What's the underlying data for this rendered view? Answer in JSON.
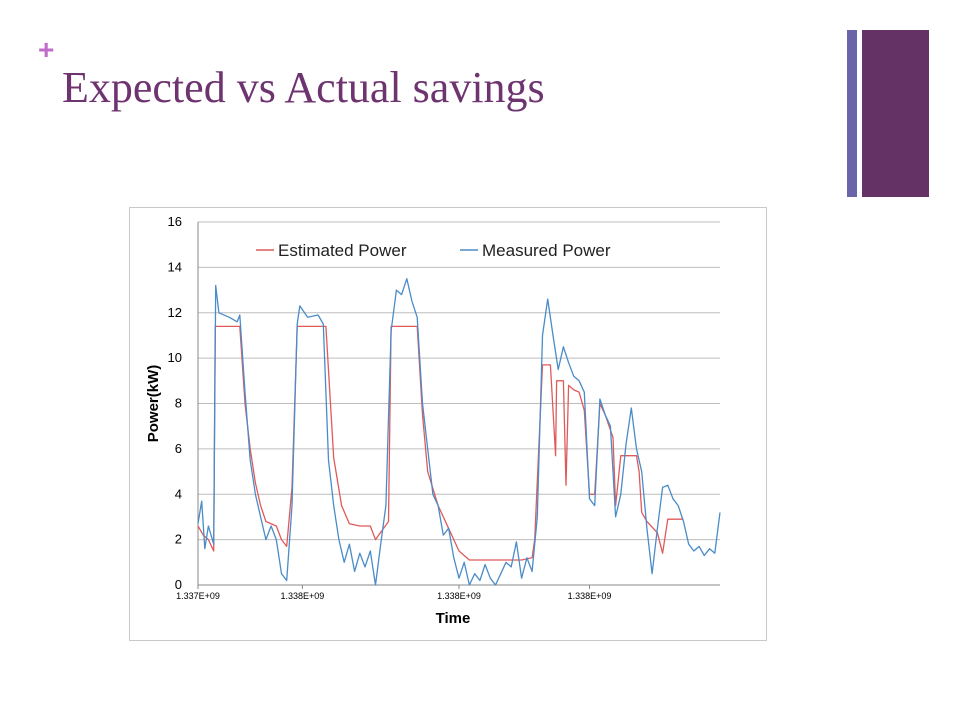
{
  "slide": {
    "plus": "+",
    "title": "Expected vs Actual savings",
    "colors": {
      "accent": "#c06cc8",
      "title": "#6e3470",
      "bar_thin": "#6a64a8",
      "bar_thick": "#643264"
    }
  },
  "chart_data": {
    "type": "line",
    "title": "",
    "xlabel": "Time",
    "ylabel": "Power(kW)",
    "ylim": [
      0,
      16
    ],
    "yticks": [
      "0",
      "2",
      "4",
      "6",
      "8",
      "10",
      "12",
      "14",
      "16"
    ],
    "xticks": [
      "1.337E+09",
      "1.338E+09",
      "1.338E+09",
      "1.338E+09"
    ],
    "x_tick_positions": [
      0,
      0.2,
      0.5,
      0.75
    ],
    "grid": true,
    "legend_position": "top",
    "series": [
      {
        "name": "Estimated Power",
        "color": "#e05a5a",
        "points": [
          [
            0,
            2.6
          ],
          [
            0.01,
            2.2
          ],
          [
            0.02,
            2.0
          ],
          [
            0.03,
            1.5
          ],
          [
            0.033,
            11.4
          ],
          [
            0.08,
            11.4
          ],
          [
            0.09,
            8.0
          ],
          [
            0.1,
            6.0
          ],
          [
            0.11,
            4.5
          ],
          [
            0.12,
            3.5
          ],
          [
            0.13,
            2.8
          ],
          [
            0.15,
            2.6
          ],
          [
            0.16,
            2.0
          ],
          [
            0.17,
            1.7
          ],
          [
            0.18,
            4.3
          ],
          [
            0.19,
            11.4
          ],
          [
            0.245,
            11.4
          ],
          [
            0.26,
            5.6
          ],
          [
            0.275,
            3.5
          ],
          [
            0.29,
            2.7
          ],
          [
            0.31,
            2.6
          ],
          [
            0.33,
            2.6
          ],
          [
            0.34,
            2.0
          ],
          [
            0.365,
            2.8
          ],
          [
            0.37,
            11.4
          ],
          [
            0.42,
            11.4
          ],
          [
            0.43,
            7.5
          ],
          [
            0.44,
            5.0
          ],
          [
            0.46,
            3.5
          ],
          [
            0.48,
            2.5
          ],
          [
            0.49,
            2.0
          ],
          [
            0.5,
            1.5
          ],
          [
            0.52,
            1.1
          ],
          [
            0.56,
            1.1
          ],
          [
            0.62,
            1.1
          ],
          [
            0.64,
            1.2
          ],
          [
            0.645,
            2.0
          ],
          [
            0.66,
            9.7
          ],
          [
            0.675,
            9.7
          ],
          [
            0.685,
            5.7
          ],
          [
            0.687,
            9.0
          ],
          [
            0.7,
            9.0
          ],
          [
            0.705,
            4.4
          ],
          [
            0.71,
            8.8
          ],
          [
            0.72,
            8.6
          ],
          [
            0.73,
            8.5
          ],
          [
            0.74,
            7.7
          ],
          [
            0.75,
            4.0
          ],
          [
            0.76,
            4.0
          ],
          [
            0.77,
            8.0
          ],
          [
            0.78,
            7.5
          ],
          [
            0.795,
            6.5
          ],
          [
            0.8,
            3.5
          ],
          [
            0.81,
            5.7
          ],
          [
            0.84,
            5.7
          ],
          [
            0.845,
            5.0
          ],
          [
            0.85,
            3.2
          ],
          [
            0.86,
            2.8
          ],
          [
            0.88,
            2.3
          ],
          [
            0.89,
            1.4
          ],
          [
            0.9,
            2.9
          ],
          [
            0.93,
            2.9
          ]
        ]
      },
      {
        "name": "Measured Power",
        "color": "#4a8cc8",
        "points": [
          [
            0,
            2.7
          ],
          [
            0.007,
            3.7
          ],
          [
            0.013,
            1.6
          ],
          [
            0.02,
            2.6
          ],
          [
            0.03,
            1.8
          ],
          [
            0.034,
            13.2
          ],
          [
            0.04,
            12.0
          ],
          [
            0.06,
            11.8
          ],
          [
            0.075,
            11.6
          ],
          [
            0.08,
            11.9
          ],
          [
            0.09,
            8.5
          ],
          [
            0.1,
            5.5
          ],
          [
            0.11,
            4.0
          ],
          [
            0.12,
            3.0
          ],
          [
            0.13,
            2.0
          ],
          [
            0.14,
            2.6
          ],
          [
            0.15,
            2.0
          ],
          [
            0.16,
            0.5
          ],
          [
            0.17,
            0.2
          ],
          [
            0.18,
            3.5
          ],
          [
            0.19,
            11.5
          ],
          [
            0.195,
            12.3
          ],
          [
            0.21,
            11.8
          ],
          [
            0.23,
            11.9
          ],
          [
            0.24,
            11.5
          ],
          [
            0.25,
            5.5
          ],
          [
            0.26,
            3.5
          ],
          [
            0.27,
            2.0
          ],
          [
            0.28,
            1.0
          ],
          [
            0.29,
            1.8
          ],
          [
            0.3,
            0.6
          ],
          [
            0.31,
            1.4
          ],
          [
            0.32,
            0.8
          ],
          [
            0.33,
            1.5
          ],
          [
            0.34,
            0.0
          ],
          [
            0.35,
            1.8
          ],
          [
            0.36,
            3.5
          ],
          [
            0.37,
            11.2
          ],
          [
            0.38,
            13.0
          ],
          [
            0.39,
            12.8
          ],
          [
            0.4,
            13.5
          ],
          [
            0.41,
            12.5
          ],
          [
            0.42,
            11.8
          ],
          [
            0.43,
            8.0
          ],
          [
            0.44,
            6.0
          ],
          [
            0.45,
            4.0
          ],
          [
            0.46,
            3.5
          ],
          [
            0.47,
            2.2
          ],
          [
            0.48,
            2.5
          ],
          [
            0.49,
            1.2
          ],
          [
            0.5,
            0.3
          ],
          [
            0.51,
            1.0
          ],
          [
            0.52,
            0.0
          ],
          [
            0.53,
            0.5
          ],
          [
            0.54,
            0.2
          ],
          [
            0.55,
            0.9
          ],
          [
            0.56,
            0.3
          ],
          [
            0.57,
            0.0
          ],
          [
            0.58,
            0.5
          ],
          [
            0.59,
            1.0
          ],
          [
            0.6,
            0.8
          ],
          [
            0.61,
            1.9
          ],
          [
            0.62,
            0.3
          ],
          [
            0.63,
            1.2
          ],
          [
            0.64,
            0.6
          ],
          [
            0.65,
            3.0
          ],
          [
            0.66,
            11.0
          ],
          [
            0.67,
            12.6
          ],
          [
            0.68,
            11.0
          ],
          [
            0.69,
            9.5
          ],
          [
            0.7,
            10.5
          ],
          [
            0.71,
            9.8
          ],
          [
            0.72,
            9.2
          ],
          [
            0.73,
            9.0
          ],
          [
            0.74,
            8.5
          ],
          [
            0.75,
            3.8
          ],
          [
            0.76,
            3.5
          ],
          [
            0.77,
            8.2
          ],
          [
            0.78,
            7.5
          ],
          [
            0.79,
            7.0
          ],
          [
            0.8,
            3.0
          ],
          [
            0.81,
            4.0
          ],
          [
            0.82,
            6.2
          ],
          [
            0.83,
            7.8
          ],
          [
            0.84,
            6.0
          ],
          [
            0.85,
            5.0
          ],
          [
            0.86,
            2.5
          ],
          [
            0.87,
            0.5
          ],
          [
            0.88,
            2.5
          ],
          [
            0.89,
            4.3
          ],
          [
            0.9,
            4.4
          ],
          [
            0.91,
            3.8
          ],
          [
            0.92,
            3.5
          ],
          [
            0.93,
            2.8
          ],
          [
            0.94,
            1.8
          ],
          [
            0.95,
            1.5
          ],
          [
            0.96,
            1.7
          ],
          [
            0.97,
            1.3
          ],
          [
            0.98,
            1.6
          ],
          [
            0.99,
            1.4
          ],
          [
            1.0,
            3.2
          ]
        ]
      }
    ]
  }
}
